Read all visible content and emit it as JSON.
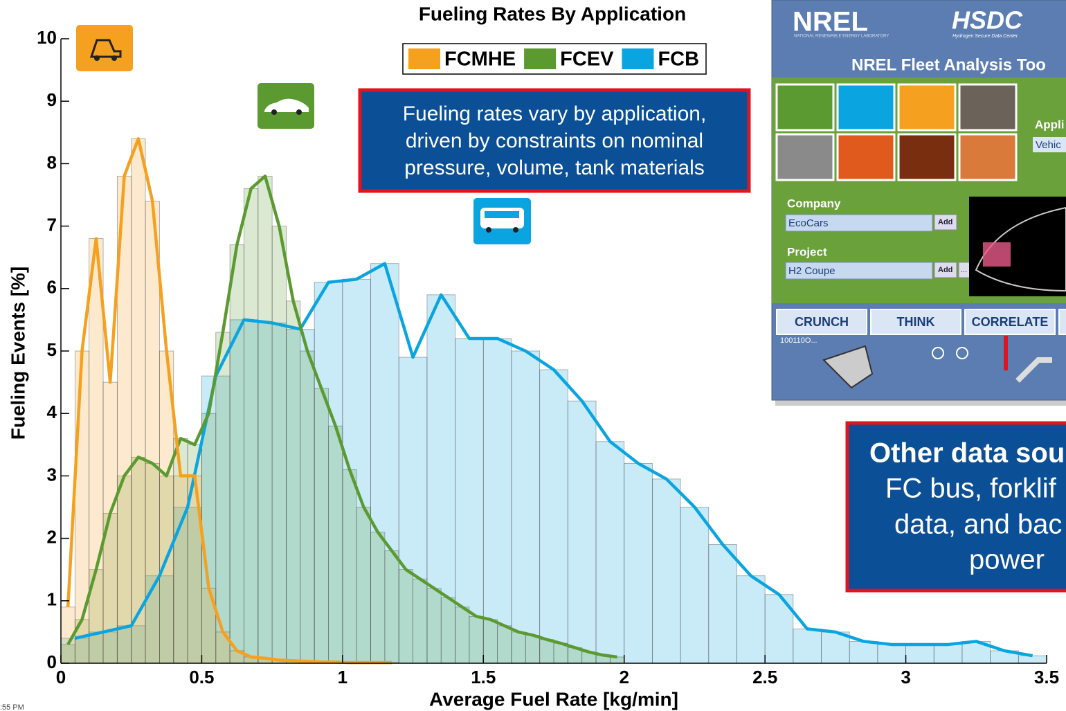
{
  "chart_data": {
    "type": "histogram",
    "title": "Fueling Rates By Application",
    "xlabel": "Average Fuel Rate [kg/min]",
    "ylabel": "Fueling Events [%]",
    "xlim": [
      0,
      3.5
    ],
    "ylim": [
      0,
      10
    ],
    "xticks": [
      0,
      0.5,
      1,
      1.5,
      2,
      2.5,
      3,
      3.5
    ],
    "yticks": [
      0,
      1,
      2,
      3,
      4,
      5,
      6,
      7,
      8,
      9,
      10
    ],
    "series": [
      {
        "name": "FCMHE",
        "color": "#f5a11f",
        "bins": [
          0,
          0.05,
          0.1,
          0.15,
          0.2,
          0.25,
          0.3,
          0.35,
          0.4,
          0.45,
          0.5,
          0.55,
          0.6,
          0.65,
          0.7,
          0.75,
          0.8,
          0.85,
          0.9,
          0.95,
          1,
          1.05,
          1.1,
          1.15,
          1.2
        ],
        "values": [
          0.9,
          5.0,
          6.8,
          4.5,
          7.8,
          8.4,
          7.4,
          5.0,
          3.0,
          3.0,
          1.2,
          0.5,
          0.2,
          0.1,
          0.08,
          0.05,
          0.04,
          0.03,
          0.02,
          0.02,
          0.01,
          0.01,
          0.01,
          0.01
        ]
      },
      {
        "name": "FCEV",
        "color": "#5b9a31",
        "bins": [
          0,
          0.05,
          0.1,
          0.15,
          0.2,
          0.25,
          0.3,
          0.35,
          0.4,
          0.45,
          0.5,
          0.55,
          0.6,
          0.65,
          0.7,
          0.75,
          0.8,
          0.85,
          0.9,
          0.95,
          1,
          1.05,
          1.1,
          1.15,
          1.2,
          1.25,
          1.3,
          1.35,
          1.4,
          1.45,
          1.5,
          1.55,
          1.6,
          1.65,
          1.7,
          1.75,
          1.8,
          1.85,
          1.9,
          1.95,
          2
        ],
        "values": [
          0.3,
          0.7,
          1.5,
          2.4,
          3.0,
          3.3,
          3.2,
          3.0,
          3.6,
          3.5,
          4.0,
          5.3,
          6.7,
          7.6,
          7.8,
          7.0,
          5.8,
          5.0,
          4.4,
          3.8,
          3.1,
          2.5,
          2.1,
          1.8,
          1.5,
          1.35,
          1.2,
          1.05,
          0.9,
          0.75,
          0.7,
          0.6,
          0.5,
          0.45,
          0.38,
          0.32,
          0.25,
          0.18,
          0.13,
          0.1
        ]
      },
      {
        "name": "FCB",
        "color": "#0aa5e0",
        "bins": [
          0,
          0.1,
          0.2,
          0.3,
          0.4,
          0.5,
          0.6,
          0.7,
          0.8,
          0.9,
          1,
          1.1,
          1.2,
          1.3,
          1.4,
          1.5,
          1.6,
          1.7,
          1.8,
          1.9,
          2,
          2.1,
          2.2,
          2.3,
          2.4,
          2.5,
          2.6,
          2.7,
          2.8,
          2.9,
          3,
          3.1,
          3.2,
          3.3,
          3.4,
          3.5
        ],
        "values": [
          0.4,
          0.5,
          0.6,
          1.4,
          2.5,
          4.6,
          5.5,
          5.45,
          5.35,
          6.1,
          6.15,
          6.4,
          4.9,
          5.9,
          5.2,
          5.2,
          5.0,
          4.7,
          4.2,
          3.55,
          3.2,
          2.95,
          2.5,
          1.9,
          1.4,
          1.1,
          0.55,
          0.5,
          0.35,
          0.3,
          0.3,
          0.3,
          0.35,
          0.2,
          0.12
        ]
      }
    ],
    "annotation": [
      "Fueling rates vary by application,",
      "driven by constraints on nominal",
      "pressure, volume, tank materials"
    ]
  },
  "inset": {
    "logo": "NREL",
    "logo_sub": "NATIONAL RENEWABLE ENERGY LABORATORY",
    "hsdc": "HSDC",
    "hsdc_sub": "Hydrogen Secure Data Center",
    "title": "NREL Fleet Analysis Too",
    "appli": "Appli",
    "vehic": "Vehic",
    "company_label": "Company",
    "company": "EcoCars",
    "project_label": "Project",
    "project": "H2 Coupe",
    "add": "Add",
    "more": "...",
    "buttons": [
      "CRUNCH",
      "THINK",
      "CORRELATE"
    ],
    "binary": "100110O..."
  },
  "callout": [
    "Other data sou",
    "FC bus, forklif",
    "data, and bac",
    "power"
  ],
  "clock": ":55 PM"
}
